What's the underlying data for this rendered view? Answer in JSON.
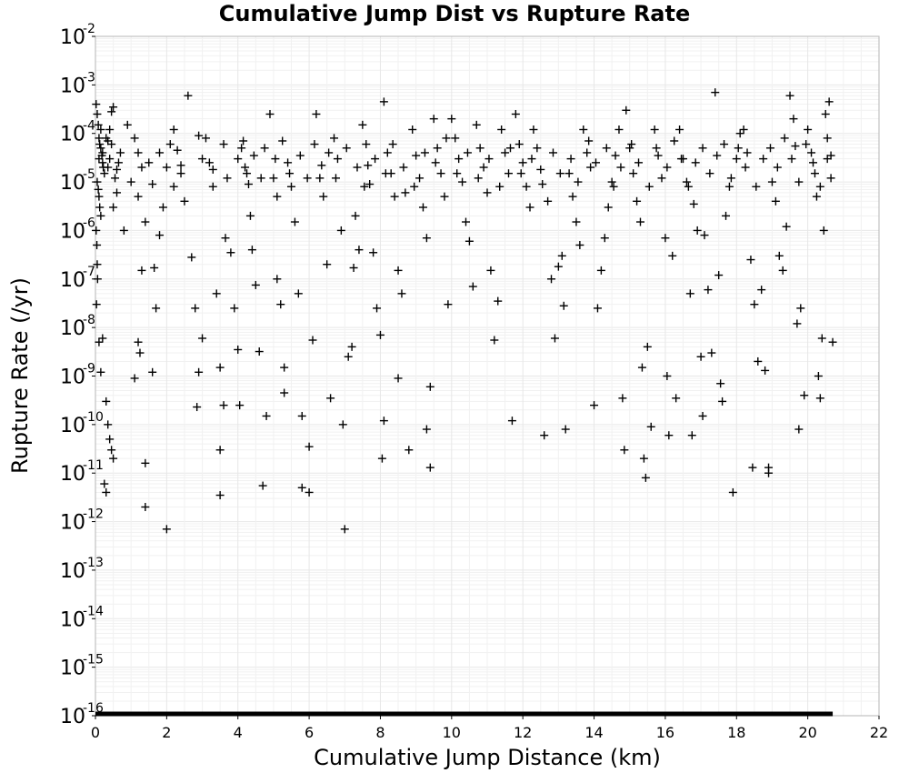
{
  "chart_data": {
    "type": "scatter",
    "title": "Cumulative Jump Dist vs Rupture Rate",
    "xlabel": "Cumulative Jump Distance (km)",
    "ylabel": "Rupture Rate (/yr)",
    "x_scale": "linear",
    "y_scale": "log",
    "xlim": [
      0,
      22
    ],
    "ylim": [
      1e-16,
      0.01
    ],
    "grid": true,
    "marker": "plus",
    "marker_color": "#000000",
    "x_ticks": [
      "0",
      "2",
      "4",
      "6",
      "8",
      "10",
      "12",
      "14",
      "16",
      "18",
      "20",
      "22"
    ],
    "y_ticks": [
      {
        "base": "10",
        "exp": "-2"
      },
      {
        "base": "10",
        "exp": "-3"
      },
      {
        "base": "10",
        "exp": "-4"
      },
      {
        "base": "10",
        "exp": "-5"
      },
      {
        "base": "10",
        "exp": "-6"
      },
      {
        "base": "10",
        "exp": "-7"
      },
      {
        "base": "10",
        "exp": "-8"
      },
      {
        "base": "10",
        "exp": "-9"
      },
      {
        "base": "10",
        "exp": "-10"
      },
      {
        "base": "10",
        "exp": "-11"
      },
      {
        "base": "10",
        "exp": "-12"
      },
      {
        "base": "10",
        "exp": "-13"
      },
      {
        "base": "10",
        "exp": "-14"
      },
      {
        "base": "10",
        "exp": "-15"
      },
      {
        "base": "10",
        "exp": "-16"
      }
    ],
    "floor_segment": {
      "x": [
        0,
        20.7
      ],
      "y": 1e-16
    },
    "points": [
      [
        0.02,
        0.0004
      ],
      [
        0.05,
        0.00025
      ],
      [
        0.08,
        0.00015
      ],
      [
        0.1,
        8e-05
      ],
      [
        0.12,
        6e-05
      ],
      [
        0.15,
        5e-05
      ],
      [
        0.18,
        3.5e-05
      ],
      [
        0.2,
        2.5e-05
      ],
      [
        0.22,
        2e-05
      ],
      [
        0.25,
        1.5e-05
      ],
      [
        0.05,
        1e-05
      ],
      [
        0.08,
        7e-06
      ],
      [
        0.1,
        5e-06
      ],
      [
        0.12,
        3e-06
      ],
      [
        0.15,
        2e-06
      ],
      [
        0.02,
        1e-06
      ],
      [
        0.04,
        5e-07
      ],
      [
        0.05,
        2e-07
      ],
      [
        0.06,
        1e-07
      ],
      [
        0.03,
        3e-08
      ],
      [
        0.1,
        5e-09
      ],
      [
        0.15,
        1.2e-09
      ],
      [
        0.2,
        6e-09
      ],
      [
        0.3,
        3e-10
      ],
      [
        0.35,
        1e-10
      ],
      [
        0.4,
        5e-11
      ],
      [
        0.45,
        3e-11
      ],
      [
        0.25,
        6e-12
      ],
      [
        0.3,
        4e-12
      ],
      [
        0.5,
        2e-11
      ],
      [
        0.5,
        0.00035
      ],
      [
        0.45,
        0.00028
      ],
      [
        0.4,
        0.00012
      ],
      [
        0.35,
        7e-05
      ],
      [
        0.4,
        3e-05
      ],
      [
        0.55,
        1.2e-05
      ],
      [
        0.6,
        6e-06
      ],
      [
        0.5,
        3e-06
      ],
      [
        0.65,
        2.5e-05
      ],
      [
        0.8,
        1e-06
      ],
      [
        0.9,
        0.00015
      ],
      [
        1.1,
        8e-05
      ],
      [
        1.2,
        4e-05
      ],
      [
        1.3,
        2e-05
      ],
      [
        1.0,
        1e-05
      ],
      [
        1.2,
        5e-06
      ],
      [
        1.4,
        1.5e-06
      ],
      [
        1.3,
        1.5e-07
      ],
      [
        1.2,
        5e-09
      ],
      [
        1.1,
        9e-10
      ],
      [
        1.25,
        3e-09
      ],
      [
        1.4,
        1.6e-11
      ],
      [
        1.4,
        2e-12
      ],
      [
        1.6,
        1.2e-09
      ],
      [
        1.7,
        2.5e-08
      ],
      [
        1.65,
        1.7e-07
      ],
      [
        1.8,
        8e-07
      ],
      [
        1.9,
        3e-06
      ],
      [
        2.0,
        2e-05
      ],
      [
        2.1,
        6e-05
      ],
      [
        2.0,
        7e-13
      ],
      [
        2.2,
        0.00012
      ],
      [
        2.3,
        4.5e-05
      ],
      [
        2.4,
        1.5e-05
      ],
      [
        2.5,
        4e-06
      ],
      [
        2.6,
        0.0006
      ],
      [
        2.7,
        2.8e-07
      ],
      [
        2.8,
        2.5e-08
      ],
      [
        2.85,
        2.3e-10
      ],
      [
        2.9,
        1.2e-09
      ],
      [
        3.0,
        6e-09
      ],
      [
        3.1,
        8e-05
      ],
      [
        3.2,
        2.5e-05
      ],
      [
        3.3,
        8e-06
      ],
      [
        3.4,
        5e-08
      ],
      [
        3.5,
        3e-11
      ],
      [
        3.5,
        3.5e-12
      ],
      [
        3.5,
        1.5e-09
      ],
      [
        3.6,
        2.5e-10
      ],
      [
        3.65,
        7e-07
      ],
      [
        3.8,
        3.5e-07
      ],
      [
        3.9,
        2.5e-08
      ],
      [
        4.0,
        3.5e-09
      ],
      [
        4.05,
        2.5e-10
      ],
      [
        4.1,
        5e-05
      ],
      [
        4.2,
        2e-05
      ],
      [
        4.3,
        9e-06
      ],
      [
        4.35,
        2e-06
      ],
      [
        4.4,
        4e-07
      ],
      [
        4.5,
        7.5e-08
      ],
      [
        4.6,
        3.2e-09
      ],
      [
        4.7,
        5.5e-12
      ],
      [
        4.8,
        1.5e-10
      ],
      [
        4.9,
        0.00025
      ],
      [
        5.0,
        1.2e-05
      ],
      [
        5.1,
        5e-06
      ],
      [
        5.1,
        1e-07
      ],
      [
        5.2,
        3e-08
      ],
      [
        5.3,
        1.5e-09
      ],
      [
        5.3,
        4.5e-10
      ],
      [
        5.4,
        2.5e-05
      ],
      [
        5.5,
        8e-06
      ],
      [
        5.6,
        1.5e-06
      ],
      [
        5.7,
        5e-08
      ],
      [
        5.8,
        1.5e-10
      ],
      [
        5.8,
        5e-12
      ],
      [
        6.0,
        3.5e-11
      ],
      [
        6.0,
        4e-12
      ],
      [
        6.1,
        5.5e-09
      ],
      [
        6.2,
        0.00025
      ],
      [
        6.3,
        1.2e-05
      ],
      [
        6.4,
        5e-06
      ],
      [
        6.5,
        2e-07
      ],
      [
        6.6,
        3.5e-10
      ],
      [
        6.7,
        8e-05
      ],
      [
        6.8,
        3e-05
      ],
      [
        6.9,
        1e-06
      ],
      [
        6.95,
        1e-10
      ],
      [
        7.0,
        7e-13
      ],
      [
        7.1,
        2.5e-09
      ],
      [
        7.2,
        4e-09
      ],
      [
        7.25,
        1.7e-07
      ],
      [
        7.3,
        2e-06
      ],
      [
        7.4,
        4e-07
      ],
      [
        7.5,
        0.00015
      ],
      [
        7.6,
        6e-05
      ],
      [
        7.65,
        2.2e-05
      ],
      [
        7.7,
        9e-06
      ],
      [
        7.8,
        3.5e-07
      ],
      [
        7.9,
        2.5e-08
      ],
      [
        8.0,
        7e-09
      ],
      [
        8.05,
        2e-11
      ],
      [
        8.1,
        1.2e-10
      ],
      [
        8.1,
        0.00045
      ],
      [
        8.2,
        4e-05
      ],
      [
        8.3,
        1.5e-05
      ],
      [
        8.4,
        5e-06
      ],
      [
        8.5,
        1.5e-07
      ],
      [
        8.5,
        9e-10
      ],
      [
        8.6,
        5e-08
      ],
      [
        8.7,
        6e-06
      ],
      [
        8.8,
        3e-11
      ],
      [
        8.9,
        0.00012
      ],
      [
        9.0,
        3.5e-05
      ],
      [
        9.1,
        1.2e-05
      ],
      [
        9.2,
        3e-06
      ],
      [
        9.3,
        7e-07
      ],
      [
        9.3,
        8e-11
      ],
      [
        9.4,
        6e-10
      ],
      [
        9.4,
        1.3e-11
      ],
      [
        9.5,
        0.0002
      ],
      [
        9.6,
        5e-05
      ],
      [
        9.7,
        1.5e-05
      ],
      [
        9.8,
        5e-06
      ],
      [
        9.9,
        3e-08
      ],
      [
        10.0,
        0.0002
      ],
      [
        10.1,
        8e-05
      ],
      [
        10.2,
        3e-05
      ],
      [
        10.3,
        1e-05
      ],
      [
        10.4,
        1.5e-06
      ],
      [
        10.5,
        6e-07
      ],
      [
        10.6,
        7e-08
      ],
      [
        10.7,
        0.00015
      ],
      [
        10.8,
        5e-05
      ],
      [
        10.9,
        2e-05
      ],
      [
        11.0,
        6e-06
      ],
      [
        11.1,
        1.5e-07
      ],
      [
        11.2,
        5.5e-09
      ],
      [
        11.3,
        3.5e-08
      ],
      [
        11.4,
        0.00012
      ],
      [
        11.5,
        4e-05
      ],
      [
        11.6,
        1.5e-05
      ],
      [
        11.7,
        1.2e-10
      ],
      [
        11.8,
        0.00025
      ],
      [
        11.9,
        6e-05
      ],
      [
        12.0,
        2.5e-05
      ],
      [
        12.1,
        8e-06
      ],
      [
        12.2,
        3e-06
      ],
      [
        12.3,
        0.00012
      ],
      [
        12.4,
        5e-05
      ],
      [
        12.5,
        1.8e-05
      ],
      [
        12.6,
        6e-11
      ],
      [
        12.7,
        4e-06
      ],
      [
        12.8,
        1e-07
      ],
      [
        12.9,
        6e-09
      ],
      [
        13.0,
        1.8e-07
      ],
      [
        13.1,
        3e-07
      ],
      [
        13.15,
        2.8e-08
      ],
      [
        13.2,
        8e-11
      ],
      [
        13.3,
        1.5e-05
      ],
      [
        13.4,
        5e-06
      ],
      [
        13.5,
        1.5e-06
      ],
      [
        13.6,
        5e-07
      ],
      [
        13.7,
        0.00012
      ],
      [
        13.8,
        4e-05
      ],
      [
        13.9,
        2e-05
      ],
      [
        14.0,
        2.5e-10
      ],
      [
        14.1,
        2.5e-08
      ],
      [
        14.2,
        1.5e-07
      ],
      [
        14.3,
        7e-07
      ],
      [
        14.4,
        3e-06
      ],
      [
        14.5,
        1e-05
      ],
      [
        14.6,
        3.5e-05
      ],
      [
        14.7,
        0.00012
      ],
      [
        14.8,
        3.5e-10
      ],
      [
        14.85,
        3e-11
      ],
      [
        14.9,
        0.0003
      ],
      [
        15.0,
        5e-05
      ],
      [
        15.1,
        1.5e-05
      ],
      [
        15.2,
        4e-06
      ],
      [
        15.3,
        1.5e-06
      ],
      [
        15.35,
        1.5e-09
      ],
      [
        15.4,
        2e-11
      ],
      [
        15.45,
        8e-12
      ],
      [
        15.5,
        4e-09
      ],
      [
        15.6,
        9e-11
      ],
      [
        15.7,
        0.00012
      ],
      [
        15.8,
        3.5e-05
      ],
      [
        15.9,
        1.2e-05
      ],
      [
        16.0,
        7e-07
      ],
      [
        16.05,
        1e-09
      ],
      [
        16.1,
        6e-11
      ],
      [
        16.2,
        3e-07
      ],
      [
        16.3,
        3.5e-10
      ],
      [
        16.4,
        0.00012
      ],
      [
        16.5,
        3e-05
      ],
      [
        16.6,
        1e-05
      ],
      [
        16.7,
        5e-08
      ],
      [
        16.75,
        6e-11
      ],
      [
        16.8,
        3.5e-06
      ],
      [
        16.9,
        1e-06
      ],
      [
        17.0,
        2.5e-09
      ],
      [
        17.05,
        1.5e-10
      ],
      [
        17.1,
        8e-07
      ],
      [
        17.2,
        6e-08
      ],
      [
        17.3,
        3e-09
      ],
      [
        17.4,
        0.0007
      ],
      [
        17.5,
        1.2e-07
      ],
      [
        17.55,
        7e-10
      ],
      [
        17.6,
        3e-10
      ],
      [
        17.7,
        2e-06
      ],
      [
        17.8,
        8e-06
      ],
      [
        17.9,
        4e-12
      ],
      [
        18.0,
        3e-05
      ],
      [
        18.1,
        0.0001
      ],
      [
        18.2,
        0.00012
      ],
      [
        18.3,
        4e-05
      ],
      [
        18.4,
        2.5e-07
      ],
      [
        18.45,
        1.3e-11
      ],
      [
        18.5,
        3e-08
      ],
      [
        18.6,
        2e-09
      ],
      [
        18.7,
        6e-08
      ],
      [
        18.8,
        1.3e-09
      ],
      [
        18.9,
        1.3e-11
      ],
      [
        18.9,
        1e-11
      ],
      [
        19.0,
        1e-05
      ],
      [
        19.1,
        4e-06
      ],
      [
        19.2,
        3e-07
      ],
      [
        19.3,
        1.5e-07
      ],
      [
        19.4,
        1.2e-06
      ],
      [
        19.5,
        0.0006
      ],
      [
        19.6,
        0.0002
      ],
      [
        19.65,
        5.5e-05
      ],
      [
        19.7,
        1.2e-08
      ],
      [
        19.75,
        8e-11
      ],
      [
        19.8,
        2.5e-08
      ],
      [
        19.9,
        4e-10
      ],
      [
        20.0,
        0.00012
      ],
      [
        20.1,
        4e-05
      ],
      [
        20.2,
        1.5e-05
      ],
      [
        20.25,
        5e-06
      ],
      [
        20.3,
        1e-09
      ],
      [
        20.35,
        3.5e-10
      ],
      [
        20.4,
        6e-09
      ],
      [
        20.45,
        1e-06
      ],
      [
        20.5,
        0.00025
      ],
      [
        20.55,
        8e-05
      ],
      [
        20.6,
        0.00045
      ],
      [
        20.65,
        3.5e-05
      ],
      [
        20.7,
        5e-09
      ],
      [
        0.6,
        1.8e-05
      ],
      [
        0.7,
        4e-05
      ],
      [
        1.5,
        2.5e-05
      ],
      [
        1.6,
        9e-06
      ],
      [
        1.8,
        4e-05
      ],
      [
        2.2,
        8e-06
      ],
      [
        2.4,
        2.2e-05
      ],
      [
        2.9,
        9e-05
      ],
      [
        3.0,
        3e-05
      ],
      [
        3.3,
        1.8e-05
      ],
      [
        3.6,
        6e-05
      ],
      [
        3.7,
        1.2e-05
      ],
      [
        4.0,
        3e-05
      ],
      [
        4.15,
        7e-05
      ],
      [
        4.25,
        1.5e-05
      ],
      [
        4.45,
        3.5e-05
      ],
      [
        4.65,
        1.2e-05
      ],
      [
        4.75,
        5e-05
      ],
      [
        5.05,
        3e-05
      ],
      [
        5.25,
        7e-05
      ],
      [
        5.45,
        1.5e-05
      ],
      [
        5.75,
        3.5e-05
      ],
      [
        5.95,
        1.2e-05
      ],
      [
        6.15,
        6e-05
      ],
      [
        6.35,
        2.2e-05
      ],
      [
        6.55,
        4e-05
      ],
      [
        6.75,
        1.2e-05
      ],
      [
        7.05,
        5e-05
      ],
      [
        7.35,
        2e-05
      ],
      [
        7.55,
        8e-06
      ],
      [
        7.85,
        3e-05
      ],
      [
        8.15,
        1.5e-05
      ],
      [
        8.35,
        6e-05
      ],
      [
        8.65,
        2e-05
      ],
      [
        8.95,
        8e-06
      ],
      [
        9.25,
        4e-05
      ],
      [
        9.55,
        2.5e-05
      ],
      [
        9.85,
        8e-05
      ],
      [
        10.15,
        1.5e-05
      ],
      [
        10.45,
        4e-05
      ],
      [
        10.75,
        1.2e-05
      ],
      [
        11.05,
        3e-05
      ],
      [
        11.35,
        8e-06
      ],
      [
        11.65,
        5e-05
      ],
      [
        11.95,
        1.5e-05
      ],
      [
        12.25,
        3e-05
      ],
      [
        12.55,
        9e-06
      ],
      [
        12.85,
        4e-05
      ],
      [
        13.05,
        1.5e-05
      ],
      [
        13.35,
        3e-05
      ],
      [
        13.55,
        1e-05
      ],
      [
        13.85,
        7e-05
      ],
      [
        14.05,
        2.5e-05
      ],
      [
        14.35,
        5e-05
      ],
      [
        14.55,
        8e-06
      ],
      [
        14.75,
        2e-05
      ],
      [
        15.05,
        6e-05
      ],
      [
        15.25,
        2.5e-05
      ],
      [
        15.55,
        8e-06
      ],
      [
        15.75,
        5e-05
      ],
      [
        16.05,
        2e-05
      ],
      [
        16.25,
        7e-05
      ],
      [
        16.45,
        3e-05
      ],
      [
        16.65,
        8e-06
      ],
      [
        16.85,
        2.5e-05
      ],
      [
        17.05,
        5e-05
      ],
      [
        17.25,
        1.5e-05
      ],
      [
        17.45,
        3.5e-05
      ],
      [
        17.65,
        6e-05
      ],
      [
        17.85,
        1.2e-05
      ],
      [
        18.05,
        5e-05
      ],
      [
        18.25,
        2e-05
      ],
      [
        18.55,
        8e-06
      ],
      [
        18.75,
        3e-05
      ],
      [
        18.95,
        5e-05
      ],
      [
        19.15,
        2e-05
      ],
      [
        19.35,
        8e-05
      ],
      [
        19.55,
        3e-05
      ],
      [
        19.75,
        1e-05
      ],
      [
        19.95,
        6e-05
      ],
      [
        20.15,
        2.5e-05
      ],
      [
        20.35,
        8e-06
      ],
      [
        20.55,
        3e-05
      ],
      [
        20.65,
        1.2e-05
      ],
      [
        0.15,
        0.00012
      ],
      [
        0.3,
        8e-05
      ],
      [
        0.45,
        6e-05
      ],
      [
        0.2,
        4e-05
      ],
      [
        0.35,
        2e-05
      ],
      [
        0.1,
        3e-05
      ]
    ]
  }
}
